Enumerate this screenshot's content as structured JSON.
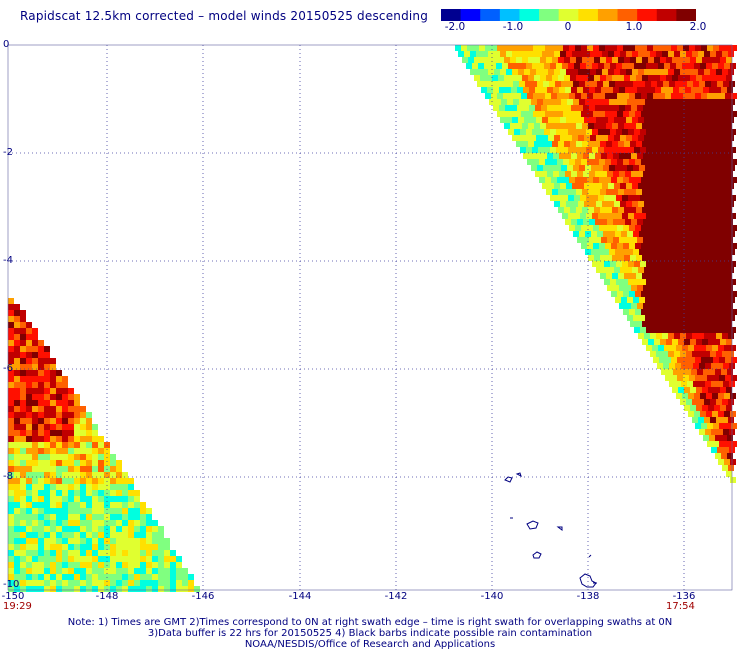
{
  "title": "Rapidscat 12.5km corrected – model winds 20150525 descending",
  "colorbar": {
    "ticks": [
      "-2.0",
      "-1.0",
      "0",
      "1.0",
      "2.0"
    ],
    "colors": [
      "#000090",
      "#0000ff",
      "#0060ff",
      "#00c0ff",
      "#00ffe0",
      "#80ff80",
      "#e0ff30",
      "#ffe000",
      "#ffa000",
      "#ff6000",
      "#ff1000",
      "#c00000",
      "#800000"
    ]
  },
  "map": {
    "x_axis": {
      "ticks": [
        "-150",
        "-148",
        "-146",
        "-144",
        "-142",
        "-140",
        "-138",
        "-136"
      ],
      "range": [
        -150,
        -135
      ]
    },
    "y_axis": {
      "ticks": [
        "0",
        "-2",
        "-4",
        "-6",
        "-8",
        "-10"
      ],
      "range": [
        -10,
        0
      ]
    },
    "grid": "dotted"
  },
  "times": {
    "left": "19:29",
    "right": "17:54"
  },
  "notes": [
    "Note: 1) Times are GMT 2)Times correspond to 0N at right swath edge – time is right swath for overlapping swaths at 0N",
    "3)Data buffer is 22 hrs for 20150525 4) Black barbs indicate possible rain contamination",
    "NOAA/NESDIS/Office of Research and Applications"
  ]
}
